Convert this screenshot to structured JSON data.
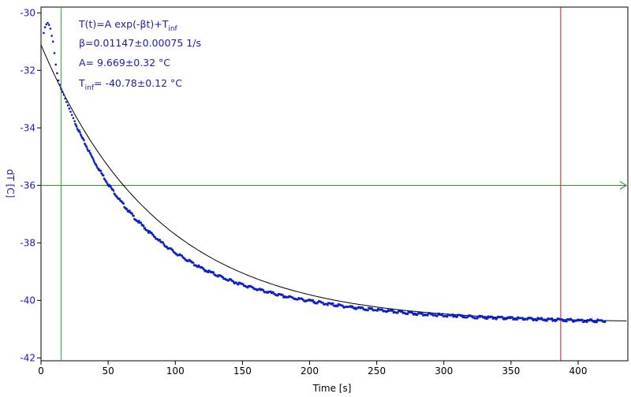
{
  "chart_data": {
    "type": "scatter",
    "xlabel": "Time [s]",
    "ylabel": "dT [C]",
    "xlim": [
      0,
      437
    ],
    "ylim": [
      -42.1,
      -29.8
    ],
    "x_ticks": [
      "0",
      "50",
      "100",
      "150",
      "200",
      "250",
      "300",
      "350",
      "400"
    ],
    "x_tick_values": [
      0,
      50,
      100,
      150,
      200,
      250,
      300,
      350,
      400
    ],
    "y_ticks": [
      "-30",
      "-32",
      "-34",
      "-36",
      "-38",
      "-40",
      "-42"
    ],
    "y_tick_values": [
      -30,
      -32,
      -34,
      -36,
      -38,
      -40,
      -42
    ],
    "annotation": {
      "formula": "T(t)=A exp(-βt)+T",
      "formula_sub": "inf",
      "beta": "β=0.01147±0.00075 1/s",
      "A": "A= 9.669±0.32 °C",
      "tinf_prefix": "T",
      "tinf_sub": "inf",
      "tinf_value": "= -40.78±0.12 °C"
    },
    "fit": {
      "A": 9.669,
      "beta": 0.01147,
      "T_inf": -40.78,
      "x_range": [
        0,
        437
      ]
    },
    "measured": {
      "x": [
        0,
        2,
        3,
        4,
        5,
        6,
        7,
        8,
        9,
        10,
        11,
        12,
        13,
        14,
        15,
        16,
        17,
        18,
        19,
        20,
        21,
        22,
        23,
        24,
        25,
        30,
        40,
        50,
        60,
        70,
        80,
        90,
        100,
        120,
        140,
        160,
        180,
        200,
        220,
        240,
        260,
        280,
        300,
        320,
        340,
        360,
        380,
        400,
        420
      ],
      "y": [
        -30.9,
        -30.7,
        -30.5,
        -30.4,
        -30.35,
        -30.42,
        -30.55,
        -30.8,
        -31.0,
        -31.4,
        -31.8,
        -32.1,
        -32.35,
        -32.5,
        -32.65,
        -32.75,
        -32.85,
        -32.98,
        -33.1,
        -33.22,
        -33.33,
        -33.44,
        -33.55,
        -33.66,
        -33.77,
        -34.3,
        -35.2,
        -35.95,
        -36.6,
        -37.15,
        -37.6,
        -38.0,
        -38.35,
        -38.9,
        -39.3,
        -39.6,
        -39.85,
        -40.02,
        -40.17,
        -40.29,
        -40.38,
        -40.46,
        -40.52,
        -40.57,
        -40.61,
        -40.64,
        -40.67,
        -40.7,
        -40.72
      ]
    },
    "cursor_lines": {
      "green_x": 15,
      "red_x": 387,
      "horizontal_y": -36
    },
    "colors": {
      "data": "#0a1fd0",
      "fit": "#000000",
      "green": "#19c419",
      "red": "#d01414",
      "hline": "#1a8a1a",
      "text": "#1a1acc",
      "axis": "#000000"
    },
    "grid": false,
    "legend": "none"
  }
}
